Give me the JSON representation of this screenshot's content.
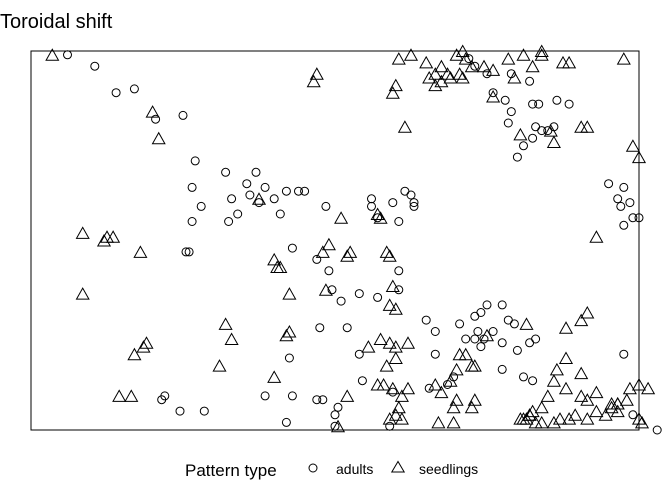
{
  "chart_data": {
    "type": "scatter",
    "title": "Toroidal shift",
    "xlabel": "",
    "ylabel": "",
    "axes": "none",
    "xlim": [
      0,
      200
    ],
    "ylim": [
      0,
      100
    ],
    "legend": {
      "title": "Pattern type",
      "placement": "bottom",
      "entries": [
        {
          "label": "adults",
          "marker": "circle"
        },
        {
          "label": "seedlings",
          "marker": "triangle"
        }
      ]
    },
    "series": [
      {
        "name": "adults",
        "marker": "circle",
        "points": [
          [
            12,
            99
          ],
          [
            21,
            96
          ],
          [
            28,
            89
          ],
          [
            41,
            82
          ],
          [
            50,
            83
          ],
          [
            34,
            90
          ],
          [
            54,
            71
          ],
          [
            53,
            64
          ],
          [
            56,
            59
          ],
          [
            53,
            55
          ],
          [
            64,
            68
          ],
          [
            66,
            61
          ],
          [
            65,
            55
          ],
          [
            68,
            57
          ],
          [
            71,
            65
          ],
          [
            72,
            62
          ],
          [
            75,
            60
          ],
          [
            74,
            68
          ],
          [
            77,
            64
          ],
          [
            80,
            61
          ],
          [
            82,
            57
          ],
          [
            84,
            63
          ],
          [
            88,
            63
          ],
          [
            90,
            63
          ],
          [
            51,
            47
          ],
          [
            52,
            47
          ],
          [
            86,
            48
          ],
          [
            97,
            59
          ],
          [
            94,
            45
          ],
          [
            98,
            42
          ],
          [
            99,
            37
          ],
          [
            102,
            34
          ],
          [
            95,
            27
          ],
          [
            104,
            27
          ],
          [
            108,
            36
          ],
          [
            112,
            59
          ],
          [
            112,
            61
          ],
          [
            114,
            56
          ],
          [
            119,
            60
          ],
          [
            123,
            63
          ],
          [
            126,
            60
          ],
          [
            121,
            55
          ],
          [
            121,
            42
          ],
          [
            121,
            37
          ],
          [
            114,
            35
          ],
          [
            125,
            62
          ],
          [
            126,
            59
          ],
          [
            144,
            98
          ],
          [
            146,
            96
          ],
          [
            150,
            94
          ],
          [
            152,
            89
          ],
          [
            156,
            87
          ],
          [
            158,
            94
          ],
          [
            164,
            92
          ],
          [
            165,
            86
          ],
          [
            167,
            86
          ],
          [
            166,
            80
          ],
          [
            168,
            79
          ],
          [
            165,
            77
          ],
          [
            157,
            81
          ],
          [
            158,
            84
          ],
          [
            160,
            72
          ],
          [
            162,
            75
          ],
          [
            170,
            79
          ],
          [
            173,
            87
          ],
          [
            172,
            80
          ],
          [
            177,
            86
          ],
          [
            190,
            65
          ],
          [
            193,
            61
          ],
          [
            195,
            64
          ],
          [
            197,
            60
          ],
          [
            198,
            56
          ],
          [
            200,
            56
          ],
          [
            195,
            54
          ],
          [
            194,
            59
          ],
          [
            130,
            29
          ],
          [
            133,
            26
          ],
          [
            141,
            28
          ],
          [
            146,
            30
          ],
          [
            148,
            31
          ],
          [
            150,
            33
          ],
          [
            155,
            33
          ],
          [
            157,
            29
          ],
          [
            147,
            26
          ],
          [
            149,
            24
          ],
          [
            152,
            26
          ],
          [
            155,
            23
          ],
          [
            160,
            21
          ],
          [
            164,
            23
          ],
          [
            159,
            28
          ],
          [
            166,
            24
          ],
          [
            148,
            22
          ],
          [
            155,
            16
          ],
          [
            162,
            14
          ],
          [
            165,
            13
          ],
          [
            131,
            11
          ],
          [
            137,
            12
          ],
          [
            109,
            13
          ],
          [
            119,
            10
          ],
          [
            133,
            20
          ],
          [
            139,
            14
          ],
          [
            108,
            20
          ],
          [
            86,
            9
          ],
          [
            94,
            8
          ],
          [
            101,
            6
          ],
          [
            100,
            4
          ],
          [
            96,
            8
          ],
          [
            85,
            19
          ],
          [
            43,
            8
          ],
          [
            44,
            9
          ],
          [
            49,
            5
          ],
          [
            57,
            5
          ],
          [
            77,
            9
          ],
          [
            84,
            2
          ],
          [
            100,
            1
          ],
          [
            118,
            1
          ],
          [
            146,
            24
          ],
          [
            143,
            24
          ],
          [
            195,
            20
          ],
          [
            198,
            4
          ],
          [
            206,
            0
          ]
        ]
      },
      {
        "name": "seedlings",
        "marker": "triangle",
        "points": [
          [
            7,
            99
          ],
          [
            121,
            98
          ],
          [
            125,
            99
          ],
          [
            130,
            97
          ],
          [
            135,
            96
          ],
          [
            140,
            99
          ],
          [
            142,
            100
          ],
          [
            143,
            98
          ],
          [
            145,
            96
          ],
          [
            149,
            96
          ],
          [
            152,
            95
          ],
          [
            157,
            98
          ],
          [
            162,
            99
          ],
          [
            165,
            96
          ],
          [
            168,
            100
          ],
          [
            168,
            99
          ],
          [
            175,
            97
          ],
          [
            177,
            97
          ],
          [
            195,
            98
          ],
          [
            133,
            94
          ],
          [
            131,
            93
          ],
          [
            137,
            94
          ],
          [
            138,
            93
          ],
          [
            141,
            94
          ],
          [
            142,
            93
          ],
          [
            133,
            91
          ],
          [
            135,
            92
          ],
          [
            94,
            94
          ],
          [
            93,
            92
          ],
          [
            40,
            84
          ],
          [
            42,
            77
          ],
          [
            123,
            80
          ],
          [
            119,
            89
          ],
          [
            120,
            91
          ],
          [
            159,
            93
          ],
          [
            152,
            88
          ],
          [
            161,
            78
          ],
          [
            171,
            79
          ],
          [
            181,
            80
          ],
          [
            183,
            80
          ],
          [
            198,
            75
          ],
          [
            200,
            72
          ],
          [
            172,
            76
          ],
          [
            186,
            51
          ],
          [
            17,
            52
          ],
          [
            25,
            51
          ],
          [
            24,
            50
          ],
          [
            27,
            51
          ],
          [
            36,
            47
          ],
          [
            75,
            61
          ],
          [
            98,
            49
          ],
          [
            102,
            56
          ],
          [
            114,
            57
          ],
          [
            115,
            56
          ],
          [
            96,
            47
          ],
          [
            104,
            46
          ],
          [
            105,
            47
          ],
          [
            117,
            47
          ],
          [
            118,
            46
          ],
          [
            80,
            45
          ],
          [
            81,
            43
          ],
          [
            82,
            43
          ],
          [
            85,
            36
          ],
          [
            97,
            37
          ],
          [
            119,
            38
          ],
          [
            118,
            33
          ],
          [
            120,
            32
          ],
          [
            17,
            36
          ],
          [
            64,
            28
          ],
          [
            66,
            24
          ],
          [
            84,
            25
          ],
          [
            85,
            26
          ],
          [
            38,
            23
          ],
          [
            37,
            22
          ],
          [
            34,
            20
          ],
          [
            62,
            17
          ],
          [
            80,
            14
          ],
          [
            29,
            9
          ],
          [
            33,
            9
          ],
          [
            115,
            24
          ],
          [
            118,
            23
          ],
          [
            111,
            22
          ],
          [
            120,
            22
          ],
          [
            124,
            23
          ],
          [
            117,
            17
          ],
          [
            120,
            19
          ],
          [
            114,
            12
          ],
          [
            116,
            12
          ],
          [
            119,
            11
          ],
          [
            124,
            11
          ],
          [
            122,
            9
          ],
          [
            121,
            6
          ],
          [
            120,
            4
          ],
          [
            122,
            3
          ],
          [
            118,
            3
          ],
          [
            141,
            20
          ],
          [
            143,
            20
          ],
          [
            140,
            16
          ],
          [
            138,
            13
          ],
          [
            133,
            12
          ],
          [
            135,
            10
          ],
          [
            139,
            6
          ],
          [
            140,
            8
          ],
          [
            145,
            6
          ],
          [
            146,
            8
          ],
          [
            139,
            2
          ],
          [
            145,
            17
          ],
          [
            146,
            17
          ],
          [
            150,
            25
          ],
          [
            163,
            28
          ],
          [
            176,
            27
          ],
          [
            181,
            29
          ],
          [
            183,
            31
          ],
          [
            181,
            15
          ],
          [
            176,
            19
          ],
          [
            173,
            16
          ],
          [
            172,
            13
          ],
          [
            170,
            9
          ],
          [
            168,
            6
          ],
          [
            165,
            5
          ],
          [
            164,
            4
          ],
          [
            162,
            3
          ],
          [
            176,
            11
          ],
          [
            181,
            9
          ],
          [
            183,
            8
          ],
          [
            186,
            10
          ],
          [
            191,
            7
          ],
          [
            193,
            7
          ],
          [
            193,
            7
          ],
          [
            186,
            5
          ],
          [
            191,
            6
          ],
          [
            193,
            5
          ],
          [
            200,
            3
          ],
          [
            201,
            2
          ],
          [
            203,
            11
          ],
          [
            200,
            12
          ],
          [
            197,
            11
          ],
          [
            196,
            8
          ],
          [
            189,
            4
          ],
          [
            183,
            3
          ],
          [
            179,
            4
          ],
          [
            177,
            3
          ],
          [
            174,
            3
          ],
          [
            172,
            2
          ],
          [
            168,
            2
          ],
          [
            166,
            2
          ],
          [
            161,
            3
          ],
          [
            163,
            3
          ],
          [
            164,
            4
          ],
          [
            134,
            2
          ],
          [
            101,
            1
          ],
          [
            104,
            9
          ]
        ]
      }
    ]
  }
}
